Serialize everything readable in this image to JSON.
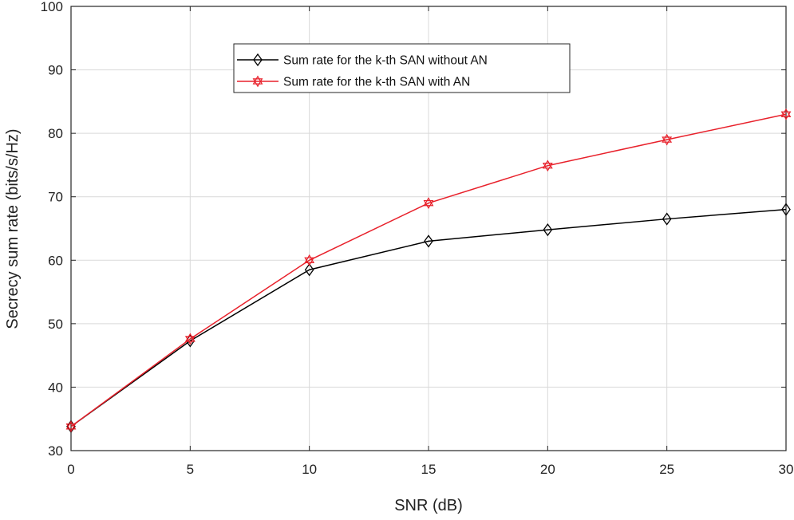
{
  "chart_data": {
    "type": "line",
    "xlabel": "SNR (dB)",
    "ylabel": "Secrecy sum rate (bits/s/Hz)",
    "xlim": [
      0,
      30
    ],
    "ylim": [
      30,
      100
    ],
    "xticks": [
      0,
      5,
      10,
      15,
      20,
      25,
      30
    ],
    "yticks": [
      30,
      40,
      50,
      60,
      70,
      80,
      90,
      100
    ],
    "grid": true,
    "legend_position": "top-center",
    "x": [
      0,
      5,
      10,
      15,
      20,
      25,
      30
    ],
    "series": [
      {
        "name": "Sum rate for the k-th SAN without AN",
        "values": [
          33.8,
          47.3,
          58.5,
          63.0,
          64.8,
          66.5,
          68.0
        ],
        "color": "#000000",
        "marker": "diamond"
      },
      {
        "name": "Sum rate for the k-th SAN with AN",
        "values": [
          33.8,
          47.6,
          60.0,
          69.0,
          74.9,
          79.0,
          83.0
        ],
        "color": "#e8212b",
        "marker": "hexagram"
      }
    ]
  }
}
